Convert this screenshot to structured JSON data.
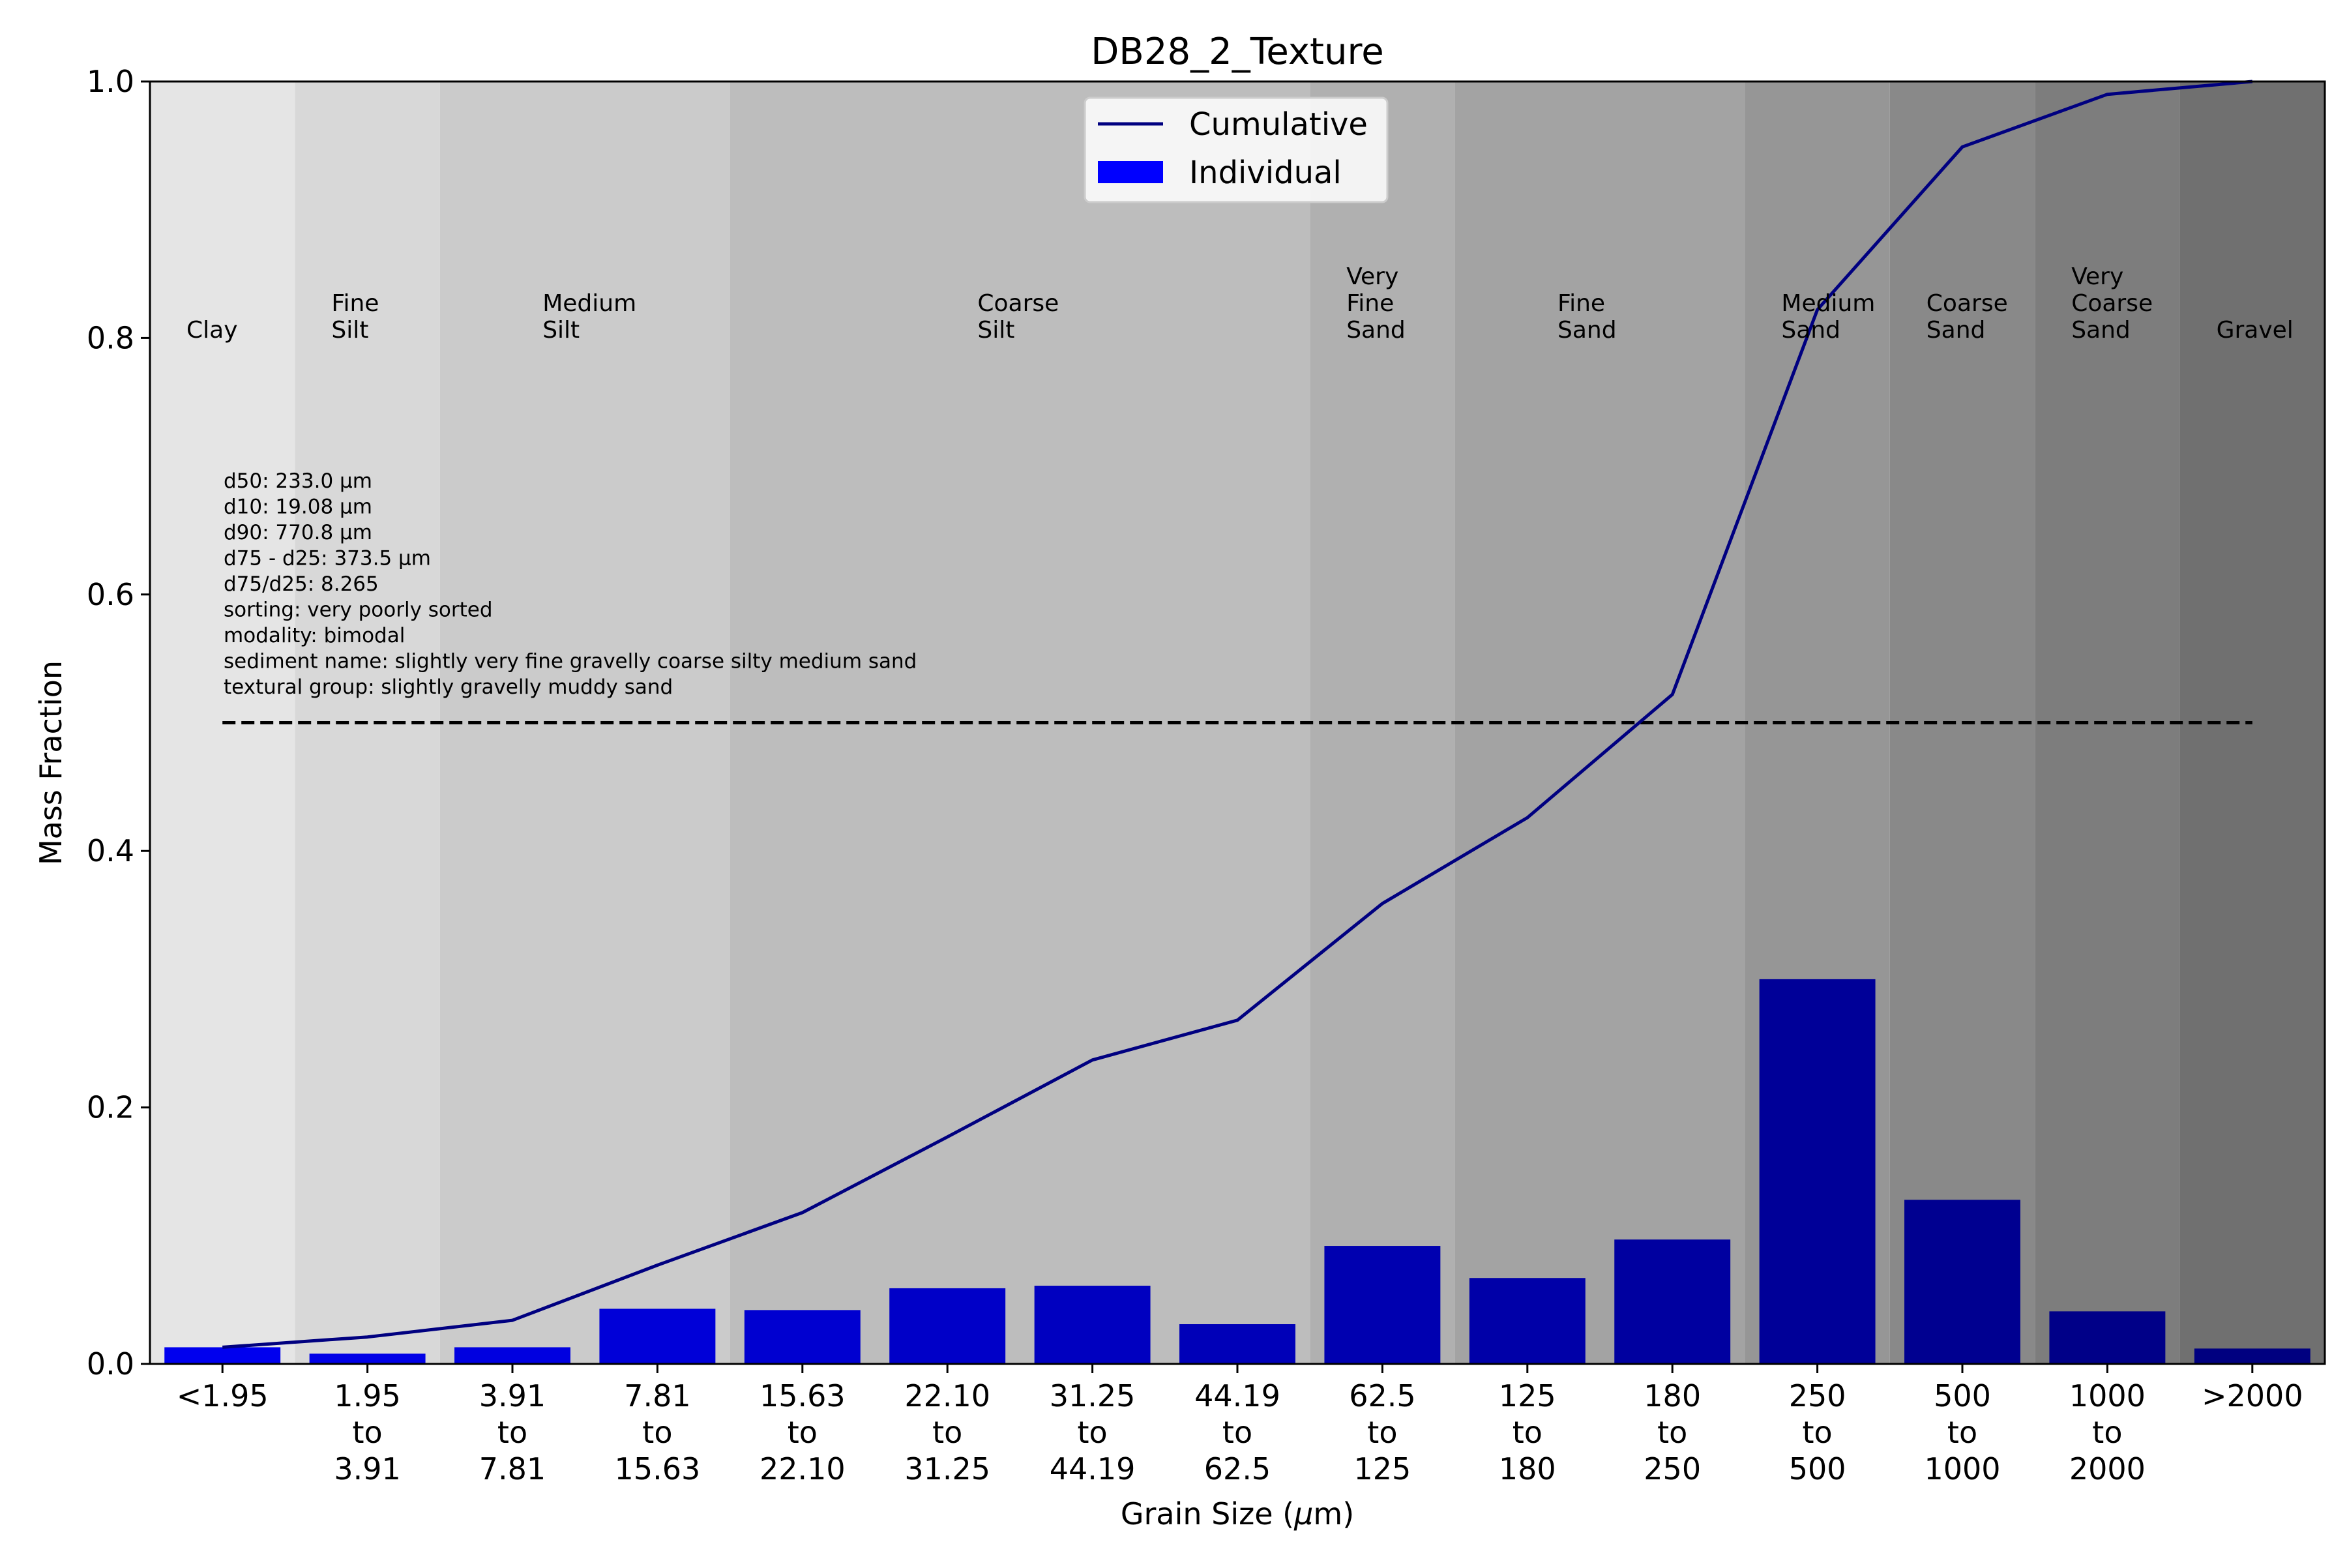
{
  "chart_data": {
    "type": "bar",
    "title": "DB28_2_Texture",
    "xlabel": "Grain Size (μm)",
    "ylabel": "Mass Fraction",
    "ylim": [
      0,
      1.0
    ],
    "yticks": [
      "0.0",
      "0.2",
      "0.4",
      "0.6",
      "0.8",
      "1.0"
    ],
    "categories": [
      [
        "<1.95"
      ],
      [
        "1.95",
        "to",
        "3.91"
      ],
      [
        "3.91",
        "to",
        "7.81"
      ],
      [
        "7.81",
        "to",
        "15.63"
      ],
      [
        "15.63",
        "to",
        "22.10"
      ],
      [
        "22.10",
        "to",
        "31.25"
      ],
      [
        "31.25",
        "to",
        "44.19"
      ],
      [
        "44.19",
        "to",
        "62.5"
      ],
      [
        "62.5",
        "to",
        "125"
      ],
      [
        "125",
        "to",
        "180"
      ],
      [
        "180",
        "to",
        "250"
      ],
      [
        "250",
        "to",
        "500"
      ],
      [
        "500",
        "to",
        "1000"
      ],
      [
        "1000",
        "to",
        "2000"
      ],
      [
        ">2000"
      ]
    ],
    "series": [
      {
        "name": "Individual",
        "kind": "bar",
        "values": [
          0.013,
          0.008,
          0.013,
          0.043,
          0.042,
          0.059,
          0.061,
          0.031,
          0.092,
          0.067,
          0.097,
          0.3,
          0.128,
          0.041,
          0.012
        ],
        "colors": [
          "#0000ee",
          "#0000e6",
          "#0000e0",
          "#0000d8",
          "#0000d0",
          "#0000c8",
          "#0000c0",
          "#0000b8",
          "#0000b0",
          "#0000a8",
          "#0000a0",
          "#000098",
          "#000090",
          "#000088",
          "#000080"
        ]
      },
      {
        "name": "Cumulative",
        "kind": "line",
        "color": "#000080",
        "values": [
          0.013,
          0.021,
          0.034,
          0.077,
          0.118,
          0.177,
          0.237,
          0.268,
          0.359,
          0.426,
          0.522,
          0.822,
          0.949,
          0.99,
          1.0
        ]
      }
    ],
    "reference_line": {
      "y": 0.5,
      "style": "dashed"
    },
    "size_classes": [
      {
        "label": [
          "Clay"
        ],
        "span": [
          0,
          1
        ],
        "shade": "#e5e5e5"
      },
      {
        "label": [
          "Fine",
          "Silt"
        ],
        "span": [
          1,
          2
        ],
        "shade": "#d8d8d8"
      },
      {
        "label": [
          "Medium",
          "Silt"
        ],
        "span": [
          2,
          4
        ],
        "shade": "#cbcbcb"
      },
      {
        "label": [
          "Coarse",
          "Silt"
        ],
        "span": [
          4,
          8
        ],
        "shade": "#bdbdbd"
      },
      {
        "label": [
          "Very",
          "Fine",
          "Sand"
        ],
        "span": [
          8,
          9
        ],
        "shade": "#b0b0b0"
      },
      {
        "label": [
          "Fine",
          "Sand"
        ],
        "span": [
          9,
          11
        ],
        "shade": "#a3a3a3"
      },
      {
        "label": [
          "Medium",
          "Sand"
        ],
        "span": [
          11,
          12
        ],
        "shade": "#969696"
      },
      {
        "label": [
          "Coarse",
          "Sand"
        ],
        "span": [
          12,
          13
        ],
        "shade": "#898989"
      },
      {
        "label": [
          "Very",
          "Coarse",
          "Sand"
        ],
        "span": [
          13,
          14
        ],
        "shade": "#7d7d7d"
      },
      {
        "label": [
          "Gravel"
        ],
        "span": [
          14,
          15
        ],
        "shade": "#707070"
      }
    ],
    "statistics": [
      "d50: 233.0 μm",
      "d10: 19.08 μm",
      "d90: 770.8 μm",
      "d75 - d25: 373.5 μm",
      "d75/d25: 8.265",
      "sorting: very poorly sorted",
      "modality: bimodal",
      "sediment name: slightly very fine gravelly coarse silty medium sand",
      "textural group: slightly gravelly muddy sand"
    ],
    "legend": {
      "placement": "top-center",
      "entries": [
        {
          "label": "Cumulative",
          "kind": "line",
          "color": "#000080"
        },
        {
          "label": "Individual",
          "kind": "patch",
          "color": "#0000ff"
        }
      ]
    }
  }
}
